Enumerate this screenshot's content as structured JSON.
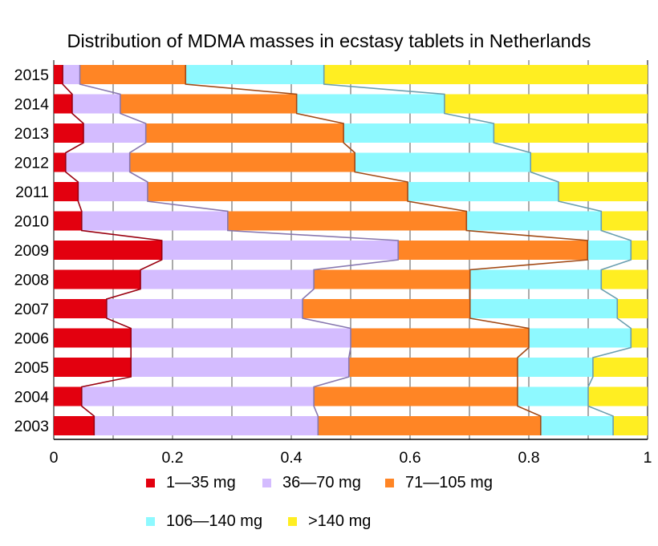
{
  "chart_data": {
    "type": "bar",
    "orientation": "horizontal",
    "stacked": true,
    "title": "Distribution of MDMA masses in ecstasy tablets in Netherlands",
    "xlabel": "",
    "ylabel": "",
    "xlim": [
      0,
      1
    ],
    "x_ticks": [
      "0",
      "0.2",
      "0.4",
      "0.6",
      "0.8",
      "1"
    ],
    "grid": "vertical lines every 0.1",
    "legend_placement": "bottom",
    "categories": [
      "2015",
      "2014",
      "2013",
      "2012",
      "2011",
      "2010",
      "2009",
      "2008",
      "2007",
      "2006",
      "2005",
      "2004",
      "2003"
    ],
    "series": [
      {
        "name": "1—35 mg",
        "color": "#e3000f",
        "line_color": "#9a0010",
        "values": [
          0.015,
          0.031,
          0.05,
          0.02,
          0.041,
          0.047,
          0.182,
          0.146,
          0.089,
          0.13,
          0.13,
          0.047,
          0.068
        ]
      },
      {
        "name": "36—70 mg",
        "color": "#d4bcff",
        "line_color": "#8878b0",
        "values": [
          0.029,
          0.081,
          0.105,
          0.108,
          0.117,
          0.246,
          0.398,
          0.292,
          0.33,
          0.37,
          0.367,
          0.391,
          0.377
        ]
      },
      {
        "name": "71—105 mg",
        "color": "#ff8525",
        "line_color": "#a24a16",
        "values": [
          0.178,
          0.297,
          0.333,
          0.379,
          0.438,
          0.402,
          0.319,
          0.263,
          0.282,
          0.3,
          0.284,
          0.343,
          0.375
        ]
      },
      {
        "name": "106—140 mg",
        "color": "#8ef9ff",
        "line_color": "#6a9fb0",
        "values": [
          0.233,
          0.249,
          0.253,
          0.296,
          0.254,
          0.227,
          0.073,
          0.221,
          0.248,
          0.172,
          0.127,
          0.119,
          0.122
        ]
      },
      {
        "name": ">140 mg",
        "color": "#ffee22",
        "line_color": "#b0a000",
        "values": [
          0.545,
          0.342,
          0.259,
          0.197,
          0.15,
          0.078,
          0.028,
          0.078,
          0.051,
          0.028,
          0.092,
          0.1,
          0.058
        ]
      }
    ]
  }
}
